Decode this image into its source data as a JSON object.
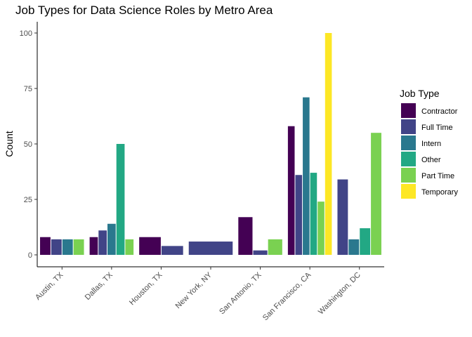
{
  "chart_data": {
    "type": "bar",
    "title": "Job Types for Data Science Roles by Metro Area",
    "xlabel": "",
    "ylabel": "Count",
    "ylim": [
      0,
      100
    ],
    "yticks": [
      0,
      25,
      50,
      75,
      100
    ],
    "grid": false,
    "legend_position": "right",
    "legend_title": "Job Type",
    "categories": [
      "Austin, TX",
      "Dallas, TX",
      "Houston, TX",
      "New York, NY",
      "San Antonio, TX",
      "San Francisco, CA",
      "Washington, DC"
    ],
    "series": [
      {
        "name": "Contractor",
        "color": "#440154",
        "values": [
          8,
          8,
          8,
          null,
          17,
          58,
          null
        ]
      },
      {
        "name": "Full Time",
        "color": "#414487",
        "values": [
          7,
          11,
          4,
          6,
          2,
          36,
          34
        ]
      },
      {
        "name": "Intern",
        "color": "#2A788E",
        "values": [
          7,
          14,
          null,
          null,
          null,
          71,
          7
        ]
      },
      {
        "name": "Other",
        "color": "#22A884",
        "values": [
          null,
          50,
          null,
          null,
          null,
          37,
          12
        ]
      },
      {
        "name": "Part Time",
        "color": "#7AD151",
        "values": [
          7,
          7,
          null,
          null,
          7,
          24,
          55
        ]
      },
      {
        "name": "Temporary",
        "color": "#FDE725",
        "values": [
          null,
          null,
          null,
          null,
          null,
          100,
          null
        ]
      }
    ]
  }
}
